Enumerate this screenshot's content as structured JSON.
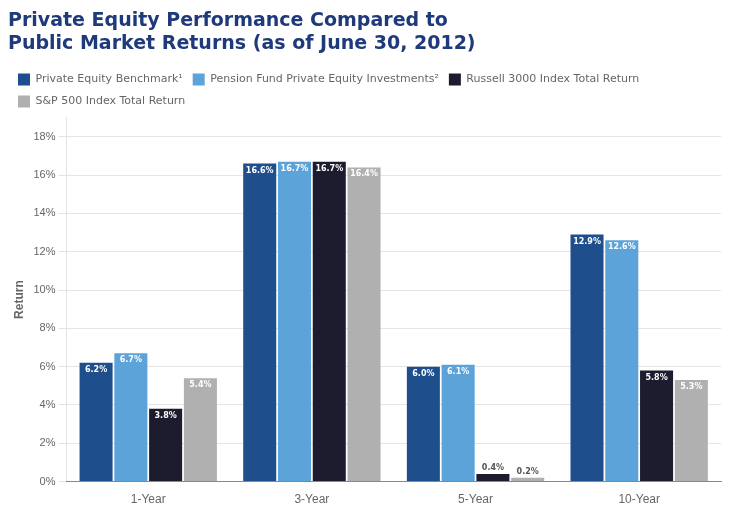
{
  "chart_data": {
    "type": "bar",
    "title": [
      "Private Equity Performance Compared to",
      "Public Market Returns (as of June 30, 2012)"
    ],
    "ylabel": "Return",
    "categories": [
      "1-Year",
      "3-Year",
      "5-Year",
      "10-Year"
    ],
    "series": [
      {
        "name": "Private Equity Benchmark¹",
        "color": "#1F4E8C",
        "values": [
          6.2,
          16.6,
          6.0,
          12.9
        ],
        "value_labels": [
          "6.2%",
          "16.6%",
          "6.0%",
          "12.9%"
        ]
      },
      {
        "name": "Pension Fund Private Equity Investments²",
        "color": "#5BA3D9",
        "values": [
          6.7,
          16.7,
          6.1,
          12.6
        ],
        "value_labels": [
          "6.7%",
          "16.7%",
          "6.1%",
          "12.6%"
        ]
      },
      {
        "name": "Russell 3000 Index Total Return",
        "color": "#1C1C2E",
        "values": [
          3.8,
          16.7,
          0.4,
          5.8
        ],
        "value_labels": [
          "3.8%",
          "16.7%",
          "0.4%",
          "5.8%"
        ]
      },
      {
        "name": "S&P 500 Index Total Return",
        "color": "#B0B0B0",
        "values": [
          5.4,
          16.4,
          0.2,
          5.3
        ],
        "value_labels": [
          "5.4%",
          "16.4%",
          "0.2%",
          "5.3%"
        ]
      }
    ],
    "ylim": [
      0,
      19
    ],
    "yticks": [
      {
        "value": 0,
        "label": "0%"
      },
      {
        "value": 2,
        "label": "2%"
      },
      {
        "value": 4,
        "label": "4%"
      },
      {
        "value": 6,
        "label": "6%"
      },
      {
        "value": 8,
        "label": "8%"
      },
      {
        "value": 10,
        "label": "10%"
      },
      {
        "value": 12,
        "label": "12%"
      },
      {
        "value": 14,
        "label": "14%"
      },
      {
        "value": 16,
        "label": "16%"
      },
      {
        "value": 18,
        "label": "18%"
      }
    ],
    "grid": true,
    "legend": "upper left",
    "data_labels": true
  }
}
